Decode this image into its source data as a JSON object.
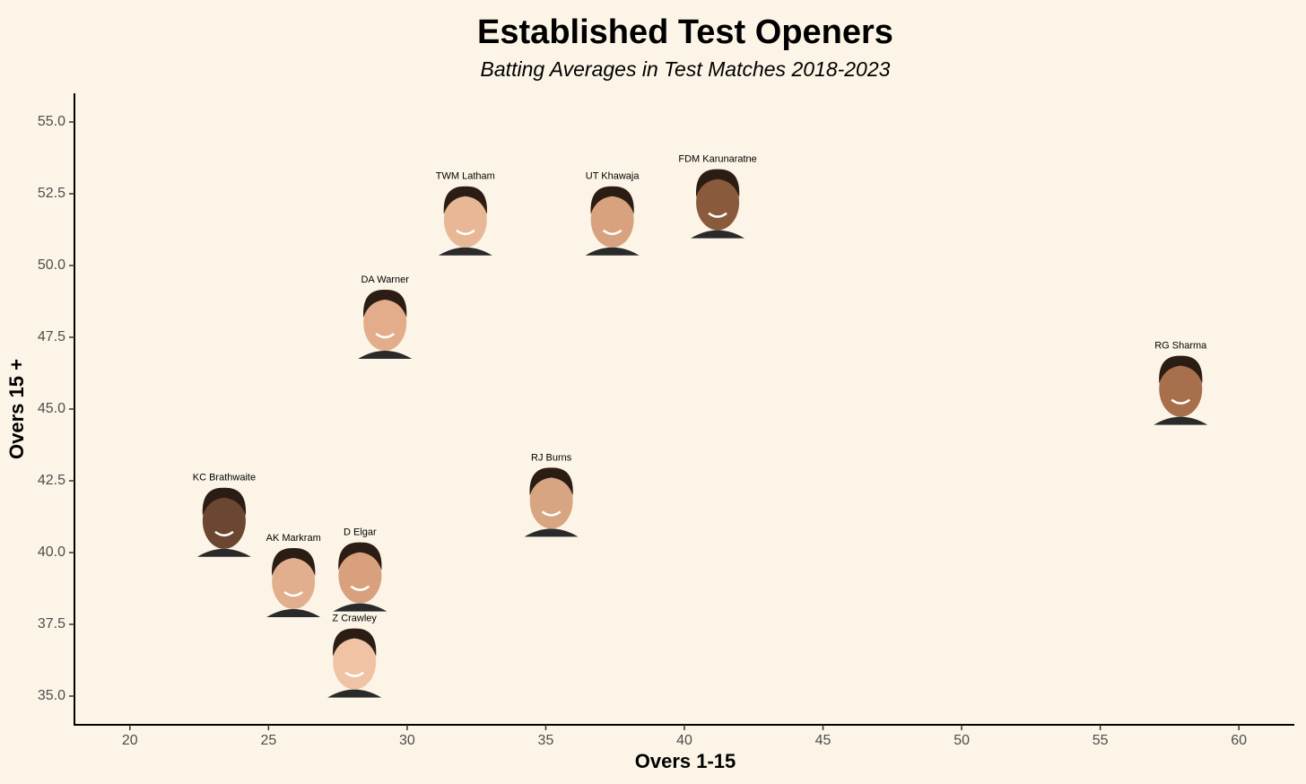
{
  "chart_data": {
    "type": "scatter",
    "title": "Established Test Openers",
    "subtitle": "Batting Averages in Test Matches 2018-2023",
    "x_label": "Overs 1-15",
    "y_label": "Overs 15 +",
    "series": [
      {
        "name": "Openers",
        "labels": [
          "TWM Latham",
          "UT Khawaja",
          "FDM Karunaratne",
          "DA Warner",
          "RG Sharma",
          "KC Brathwaite",
          "RJ Burns",
          "AK Markram",
          "D Elgar",
          "Z Crawley"
        ],
        "x": [
          32.1,
          37.4,
          41.2,
          29.2,
          57.9,
          23.4,
          35.2,
          25.9,
          28.3,
          28.1
        ],
        "values": [
          51.6,
          51.6,
          52.2,
          48.0,
          45.7,
          41.1,
          41.8,
          39.0,
          39.2,
          36.2
        ]
      }
    ],
    "xlim": [
      18,
      62
    ],
    "xticks": [
      20,
      25,
      30,
      35,
      40,
      45,
      50,
      55,
      60
    ],
    "ylim": [
      34,
      56
    ],
    "yticks": [
      {
        "value": 35,
        "label": "35.0"
      },
      {
        "value": 37.5,
        "label": "37.5"
      },
      {
        "value": 40,
        "label": "40.0"
      },
      {
        "value": 42.5,
        "label": "42.5"
      },
      {
        "value": 45,
        "label": "45.0"
      },
      {
        "value": 47.5,
        "label": "47.5"
      },
      {
        "value": 50,
        "label": "50.0"
      },
      {
        "value": 52.5,
        "label": "52.5"
      },
      {
        "value": 55,
        "label": "55.0"
      }
    ]
  }
}
